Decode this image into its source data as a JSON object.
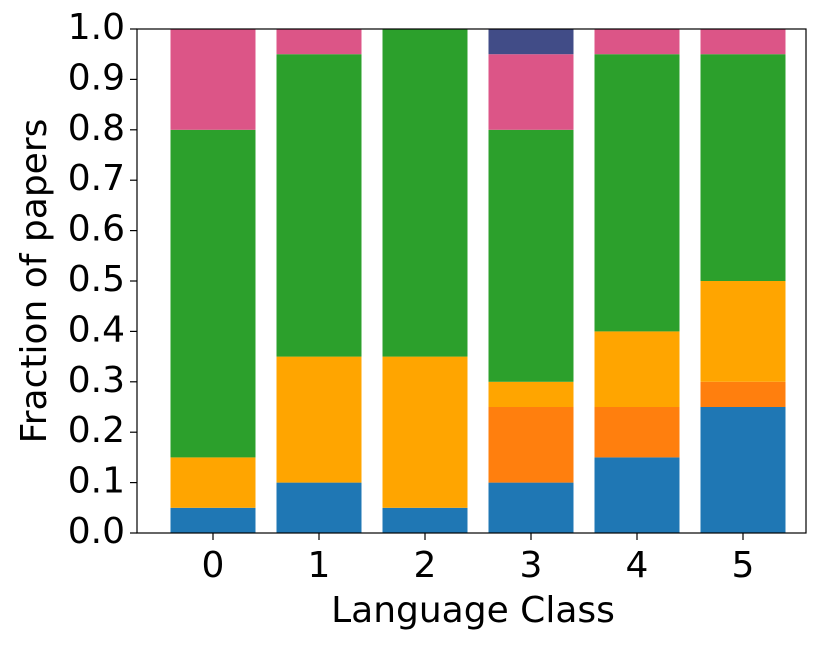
{
  "chart_data": {
    "type": "stacked-bar",
    "x_label": "Language Class",
    "y_label": "Fraction of papers",
    "categories": [
      "0",
      "1",
      "2",
      "3",
      "4",
      "5"
    ],
    "series": [
      {
        "color": "#1f77b4",
        "values": [
          0.05,
          0.1,
          0.05,
          0.1,
          0.15,
          0.25
        ]
      },
      {
        "color": "#ff7f0e",
        "values": [
          0,
          0,
          0,
          0.15,
          0.1,
          0.05
        ]
      },
      {
        "color": "#ffa500",
        "values": [
          0.1,
          0.25,
          0.3,
          0.05,
          0.15,
          0.2
        ]
      },
      {
        "color": "#2ca02c",
        "values": [
          0.65,
          0.6,
          0.65,
          0.5,
          0.55,
          0.45
        ]
      },
      {
        "color": "#dc5587",
        "values": [
          0.2,
          0.05,
          0,
          0.15,
          0.05,
          0.05
        ]
      },
      {
        "color": "#414c87",
        "values": [
          0,
          0,
          0,
          0.05,
          0,
          0
        ]
      }
    ],
    "ylim": [
      0,
      1
    ],
    "yticks": [
      {
        "value": 0,
        "label": "0.0"
      },
      0.1,
      0.2,
      0.3,
      0.4,
      0.5,
      0.6,
      0.7,
      0.8,
      0.9,
      {
        "value": 1,
        "label": "1.0"
      }
    ],
    "grid": false
  }
}
